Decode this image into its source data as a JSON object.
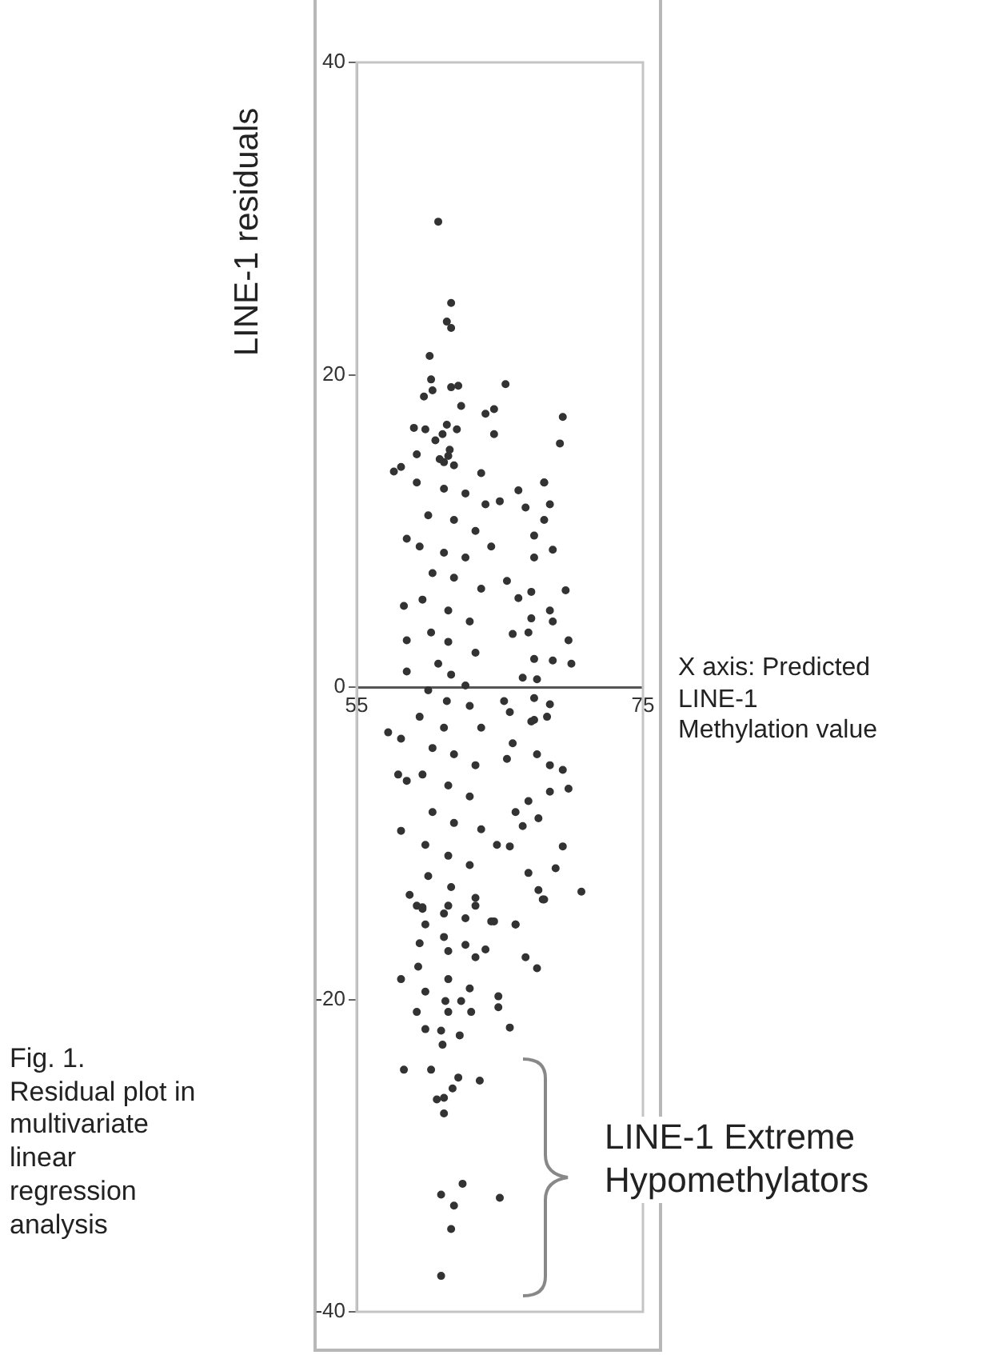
{
  "chart_data": {
    "type": "scatter",
    "ylabel": "LINE-1 residuals",
    "annotations": [
      "X axis: Predicted LINE-1 Methylation value",
      "LINE-1 Extreme Hypomethylators",
      "Fig. 1. Residual plot in multivariate linear regression analysis"
    ],
    "xlim": [
      55,
      75
    ],
    "xticks": [
      55,
      75
    ],
    "ylim": [
      -40,
      40
    ],
    "yticks": [
      -40,
      -20,
      0,
      20,
      40
    ],
    "grid": false,
    "marker": "circle",
    "series": [
      {
        "color": "#333333",
        "x": [
          60.7,
          61.6,
          61.3,
          61.6,
          60.1,
          60.2,
          60.3,
          59.7,
          61.6,
          62.1,
          65.4,
          62.3,
          69.4,
          64.0,
          64.6,
          61.3,
          59.0,
          59.8,
          69.2,
          64.6,
          59.2,
          57.6,
          58.1,
          68.1,
          60.5,
          61.0,
          61.5,
          62.0,
          60.8,
          61.8,
          68.1,
          66.3,
          68.5,
          66.8,
          65.0,
          68.1,
          58.5,
          67.4,
          68.7,
          67.4,
          65.5,
          69.6,
          67.2,
          66.3,
          58.3,
          68.5,
          67.2,
          68.7,
          65.9,
          67.0,
          69.8,
          58.5,
          67.4,
          68.7,
          70.0,
          66.6,
          67.6,
          58.5,
          65.3,
          67.4,
          68.5,
          65.7,
          67.4,
          67.2,
          68.3,
          57.2,
          65.9,
          58.1,
          67.6,
          69.4,
          68.5,
          65.5,
          57.9,
          58.5,
          69.8,
          68.5,
          67.0,
          66.1,
          58.1,
          67.7,
          64.8,
          65.7,
          69.4,
          66.6,
          68.9,
          67.0,
          67.7,
          70.7,
          58.7,
          68.1,
          59.2,
          64.6,
          66.1,
          61.1,
          61.4,
          63.7,
          59.2,
          61.1,
          62.6,
          64.0,
          60.0,
          61.8,
          63.3,
          59.4,
          61.1,
          62.6,
          64.4,
          60.3,
          61.8,
          63.7,
          59.6,
          61.4,
          62.9,
          60.2,
          61.4,
          63.3,
          60.7,
          61.6,
          62.6,
          60.0,
          61.3,
          62.9,
          59.4,
          61.1,
          63.7,
          60.3,
          61.8,
          63.3,
          59.6,
          61.4,
          62.9,
          60.3,
          61.8,
          63.7,
          59.8,
          61.4,
          62.9,
          60.0,
          61.6,
          63.3,
          59.6,
          61.1,
          62.6,
          59.6,
          61.4,
          63.3,
          68.0,
          64.4,
          66.1,
          59.8,
          61.1,
          62.6,
          59.4,
          61.4,
          64.0,
          63.3,
          66.8,
          67.6,
          59.3,
          61.4,
          58.1,
          59.8,
          62.9,
          64.9,
          61.2,
          62.3,
          64.9,
          59.2,
          61.4,
          63.0,
          59.8,
          60.9,
          62.2,
          65.7,
          61.0,
          58.3,
          60.2,
          62.1,
          63.6,
          61.7,
          61.1,
          60.6,
          61.1,
          62.4,
          60.9,
          61.8,
          65.0,
          61.6,
          60.9
        ],
        "values": [
          29.8,
          24.6,
          23.4,
          23.0,
          21.2,
          19.7,
          19.0,
          18.6,
          19.2,
          19.3,
          19.4,
          18.0,
          17.3,
          17.5,
          17.8,
          16.8,
          16.6,
          16.5,
          15.6,
          16.2,
          14.9,
          13.8,
          14.1,
          13.1,
          15.8,
          16.2,
          15.2,
          16.5,
          14.6,
          14.2,
          13.1,
          12.6,
          11.7,
          11.5,
          11.9,
          10.7,
          9.5,
          9.7,
          8.8,
          8.3,
          6.8,
          6.2,
          6.1,
          5.7,
          5.2,
          4.9,
          4.4,
          4.2,
          3.4,
          3.5,
          3.0,
          3.0,
          1.8,
          1.7,
          1.5,
          0.6,
          0.5,
          1.0,
          -0.9,
          -0.7,
          -1.1,
          -1.6,
          -2.1,
          -2.2,
          -1.9,
          -2.9,
          -3.6,
          -3.3,
          -4.3,
          -5.3,
          -5.0,
          -4.6,
          -5.6,
          -6.0,
          -6.5,
          -6.7,
          -7.3,
          -8.0,
          -9.2,
          -8.4,
          -10.1,
          -10.2,
          -10.2,
          -8.9,
          -11.6,
          -11.9,
          -13.0,
          -13.1,
          -13.3,
          -13.6,
          -14.0,
          -15.0,
          -15.2,
          14.4,
          14.8,
          13.7,
          13.1,
          12.7,
          12.4,
          11.7,
          11.0,
          10.7,
          10.0,
          9.0,
          8.6,
          8.3,
          9.0,
          7.3,
          7.0,
          6.3,
          5.6,
          4.9,
          4.2,
          3.5,
          2.9,
          2.2,
          1.5,
          0.8,
          0.1,
          -0.2,
          -0.9,
          -1.2,
          -1.9,
          -2.6,
          -2.6,
          -3.9,
          -4.3,
          -5.0,
          -5.6,
          -6.3,
          -7.0,
          -8.0,
          -8.7,
          -9.1,
          -10.1,
          -10.8,
          -11.4,
          -12.1,
          -12.8,
          -13.5,
          -14.2,
          -14.5,
          -14.8,
          -14.1,
          -14.0,
          -14.0,
          -13.6,
          -15.0,
          -15.2,
          -15.2,
          -16.0,
          -16.5,
          -16.4,
          -16.9,
          -16.8,
          -17.3,
          -17.3,
          -18.0,
          -17.9,
          -18.7,
          -18.7,
          -19.5,
          -19.3,
          -19.8,
          -20.1,
          -20.1,
          -20.5,
          -20.8,
          -20.8,
          -20.8,
          -21.9,
          -22.0,
          -22.3,
          -21.8,
          -22.9,
          -24.5,
          -24.5,
          -25.0,
          -25.2,
          -25.7,
          -26.3,
          -26.4,
          -27.3,
          -31.8,
          -32.5,
          -33.2,
          -32.7,
          -34.7,
          -37.7
        ]
      }
    ]
  }
}
